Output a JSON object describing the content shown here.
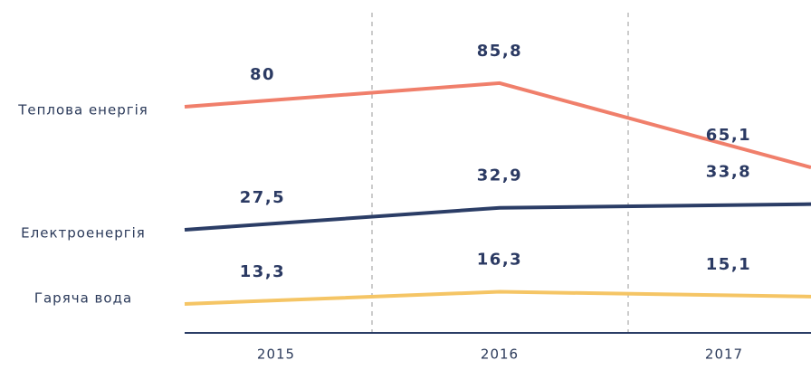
{
  "chart_data": {
    "type": "line",
    "categories": [
      "2015",
      "2016",
      "2017"
    ],
    "series": [
      {
        "name": "Теплова енергія",
        "color": "#f07f6b",
        "values": [
          80,
          85.8,
          65.1
        ],
        "value_labels": [
          "80",
          "85,8",
          "65,1"
        ]
      },
      {
        "name": "Електроенергія",
        "color": "#2b3d66",
        "values": [
          27.5,
          32.9,
          33.8
        ],
        "value_labels": [
          "27,5",
          "32,9",
          "33,8"
        ]
      },
      {
        "name": "Гаряча вода",
        "color": "#f5c565",
        "values": [
          13.3,
          16.3,
          15.1
        ],
        "value_labels": [
          "13,3",
          "16,3",
          "15,1"
        ]
      }
    ]
  }
}
